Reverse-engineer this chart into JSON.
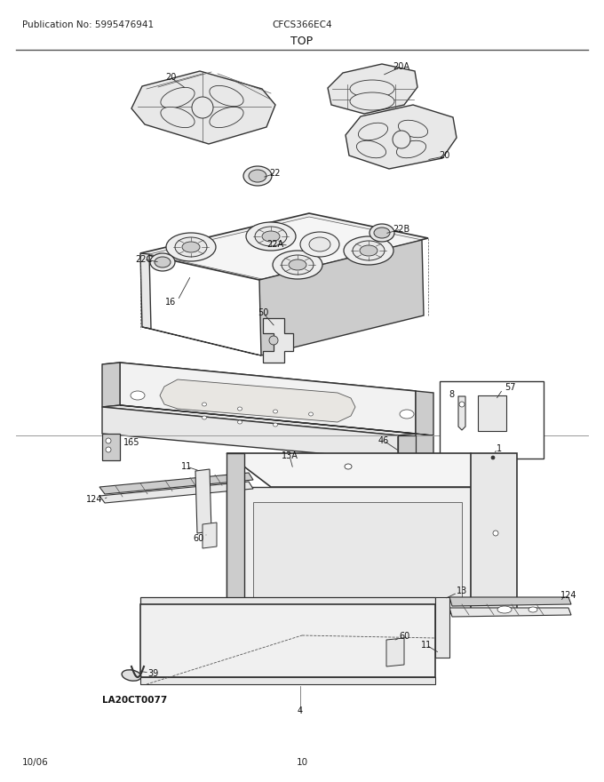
{
  "pub_no": "Publication No: 5995476941",
  "model": "CFCS366EC4",
  "section": "TOP",
  "date": "10/06",
  "page": "10",
  "bg_color": "#ffffff",
  "line_color": "#555555",
  "dark_line": "#333333",
  "fig_width": 6.8,
  "fig_height": 8.8,
  "dpi": 100
}
